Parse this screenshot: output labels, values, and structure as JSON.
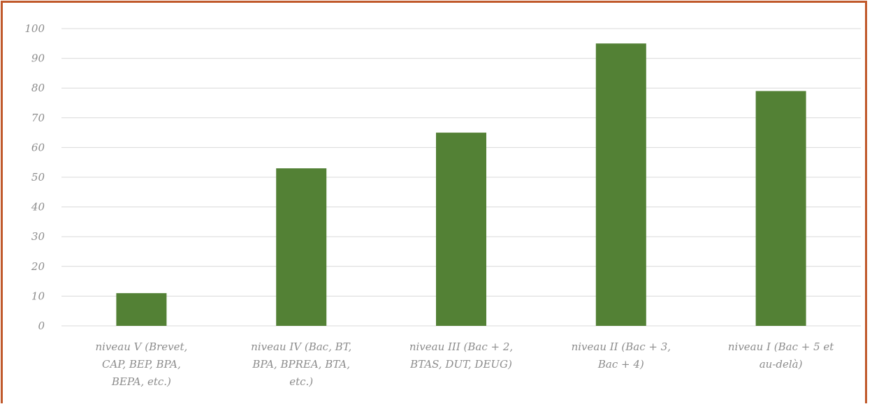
{
  "chart_data": {
    "type": "bar",
    "categories": [
      [
        "niveau V (Brevet,",
        "CAP, BEP, BPA,",
        "BEPA, etc.)"
      ],
      [
        "niveau IV (Bac, BT,",
        "BPA, BPREA, BTA,",
        "etc.)"
      ],
      [
        "niveau III (Bac + 2,",
        "BTAS, DUT, DEUG)"
      ],
      [
        "niveau II (Bac + 3,",
        "Bac + 4)"
      ],
      [
        "niveau I (Bac + 5 et",
        "au-delà)"
      ]
    ],
    "values": [
      11,
      53,
      65,
      95,
      79
    ],
    "ylim": [
      0,
      100
    ],
    "yticks": [
      0,
      10,
      20,
      30,
      40,
      50,
      60,
      70,
      80,
      90,
      100
    ],
    "grid": true,
    "bar_color": "#538135",
    "border_color": "#c0592b"
  }
}
